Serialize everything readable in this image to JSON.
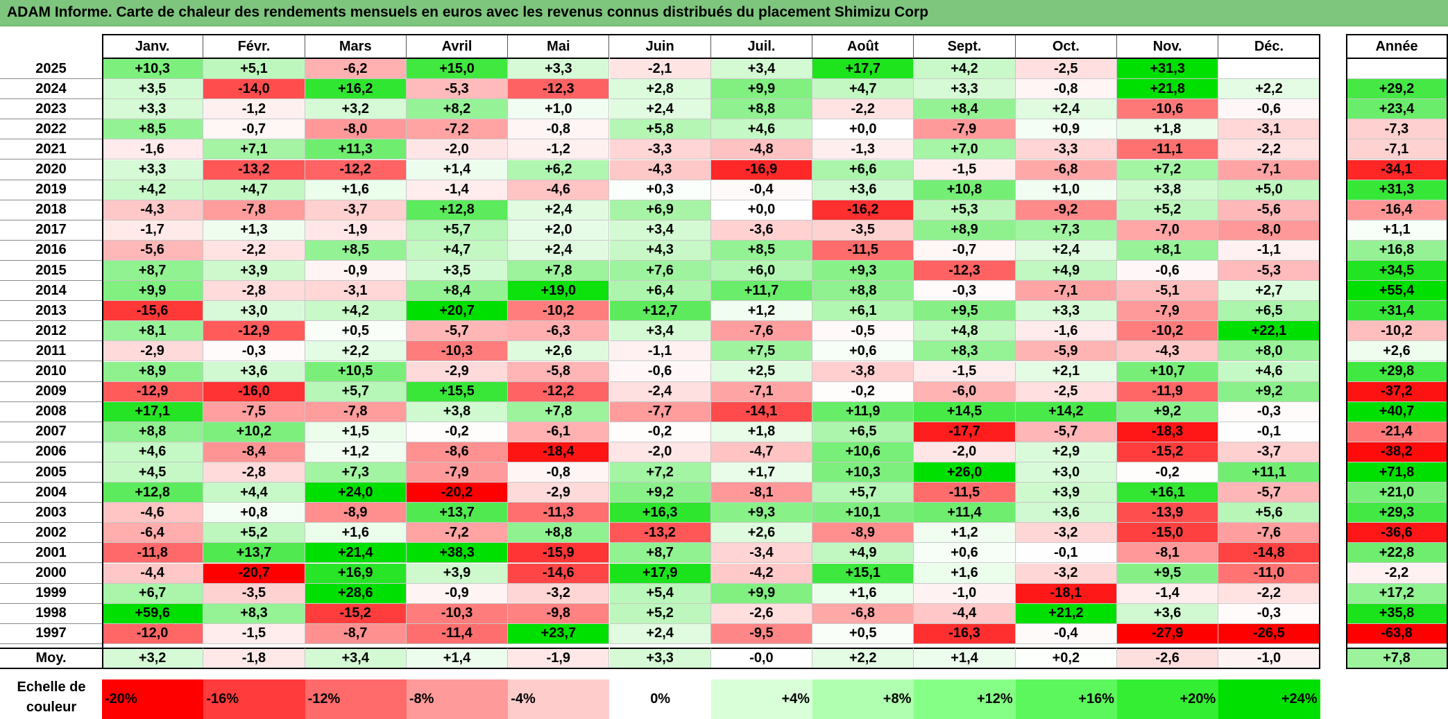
{
  "title": "ADAM Informe. Carte de chaleur des rendements mensuels en euros avec les revenus connus distribués du placement Shimizu Corp",
  "chart_data": {
    "type": "heatmap",
    "title": "ADAM Informe. Carte de chaleur des rendements mensuels en euros avec les revenus connus distribués du placement Shimizu Corp",
    "columns": [
      "Janv.",
      "Févr.",
      "Mars",
      "Avril",
      "Mai",
      "Juin",
      "Juil.",
      "Août",
      "Sept.",
      "Oct.",
      "Nov.",
      "Déc."
    ],
    "annual_header": "Année",
    "rows": [
      {
        "year": "2025",
        "values": [
          "+10,3",
          "+5,1",
          "-6,2",
          "+15,0",
          "+3,3",
          "-2,1",
          "+3,4",
          "+17,7",
          "+4,2",
          "-2,5",
          "+31,3",
          ""
        ],
        "annual": ""
      },
      {
        "year": "2024",
        "values": [
          "+3,5",
          "-14,0",
          "+16,2",
          "-5,3",
          "-12,3",
          "+2,8",
          "+9,9",
          "+4,7",
          "+3,3",
          "-0,8",
          "+21,8",
          "+2,2"
        ],
        "annual": "+29,2"
      },
      {
        "year": "2023",
        "values": [
          "+3,3",
          "-1,2",
          "+3,2",
          "+8,2",
          "+1,0",
          "+2,4",
          "+8,8",
          "-2,2",
          "+8,4",
          "+2,4",
          "-10,6",
          "-0,6"
        ],
        "annual": "+23,4"
      },
      {
        "year": "2022",
        "values": [
          "+8,5",
          "-0,7",
          "-8,0",
          "-7,2",
          "-0,8",
          "+5,8",
          "+4,6",
          "+0,0",
          "-7,9",
          "+0,9",
          "+1,8",
          "-3,1"
        ],
        "annual": "-7,3"
      },
      {
        "year": "2021",
        "values": [
          "-1,6",
          "+7,1",
          "+11,3",
          "-2,0",
          "-1,2",
          "-3,3",
          "-4,8",
          "-1,3",
          "+7,0",
          "-3,3",
          "-11,1",
          "-2,2"
        ],
        "annual": "-7,1"
      },
      {
        "year": "2020",
        "values": [
          "+3,3",
          "-13,2",
          "-12,2",
          "+1,4",
          "+6,2",
          "-4,3",
          "-16,9",
          "+6,6",
          "-1,5",
          "-6,8",
          "+7,2",
          "-7,1"
        ],
        "annual": "-34,1"
      },
      {
        "year": "2019",
        "values": [
          "+4,2",
          "+4,7",
          "+1,6",
          "-1,4",
          "-4,6",
          "+0,3",
          "-0,4",
          "+3,6",
          "+10,8",
          "+1,0",
          "+3,8",
          "+5,0"
        ],
        "annual": "+31,3"
      },
      {
        "year": "2018",
        "values": [
          "-4,3",
          "-7,8",
          "-3,7",
          "+12,8",
          "+2,4",
          "+6,9",
          "+0,0",
          "-16,2",
          "+5,3",
          "-9,2",
          "+5,2",
          "-5,6"
        ],
        "annual": "-16,4"
      },
      {
        "year": "2017",
        "values": [
          "-1,7",
          "+1,3",
          "-1,9",
          "+5,7",
          "+2,0",
          "+3,4",
          "-3,6",
          "-3,5",
          "+8,9",
          "+7,3",
          "-7,0",
          "-8,0"
        ],
        "annual": "+1,1"
      },
      {
        "year": "2016",
        "values": [
          "-5,6",
          "-2,2",
          "+8,5",
          "+4,7",
          "+2,4",
          "+4,3",
          "+8,5",
          "-11,5",
          "-0,7",
          "+2,4",
          "+8,1",
          "-1,1"
        ],
        "annual": "+16,8"
      },
      {
        "year": "2015",
        "values": [
          "+8,7",
          "+3,9",
          "-0,9",
          "+3,5",
          "+7,8",
          "+7,6",
          "+6,0",
          "+9,3",
          "-12,3",
          "+4,9",
          "-0,6",
          "-5,3"
        ],
        "annual": "+34,5"
      },
      {
        "year": "2014",
        "values": [
          "+9,9",
          "-2,8",
          "-3,1",
          "+8,4",
          "+19,0",
          "+6,4",
          "+11,7",
          "+8,8",
          "-0,3",
          "-7,1",
          "-5,1",
          "+2,7"
        ],
        "annual": "+55,4"
      },
      {
        "year": "2013",
        "values": [
          "-15,6",
          "+3,0",
          "+4,2",
          "+20,7",
          "-10,2",
          "+12,7",
          "+1,2",
          "+6,1",
          "+9,5",
          "+3,3",
          "-7,9",
          "+6,5"
        ],
        "annual": "+31,4"
      },
      {
        "year": "2012",
        "values": [
          "+8,1",
          "-12,9",
          "+0,5",
          "-5,7",
          "-6,3",
          "+3,4",
          "-7,6",
          "-0,5",
          "+4,8",
          "-1,6",
          "-10,2",
          "+22,1"
        ],
        "annual": "-10,2"
      },
      {
        "year": "2011",
        "values": [
          "-2,9",
          "-0,3",
          "+2,2",
          "-10,3",
          "+2,6",
          "-1,1",
          "+7,5",
          "+0,6",
          "+8,3",
          "-5,9",
          "-4,3",
          "+8,0"
        ],
        "annual": "+2,6"
      },
      {
        "year": "2010",
        "values": [
          "+8,9",
          "+3,6",
          "+10,5",
          "-2,9",
          "-5,8",
          "-0,6",
          "+2,5",
          "-3,8",
          "-1,5",
          "+2,1",
          "+10,7",
          "+4,6"
        ],
        "annual": "+29,8"
      },
      {
        "year": "2009",
        "values": [
          "-12,9",
          "-16,0",
          "+5,7",
          "+15,5",
          "-12,2",
          "-2,4",
          "-7,1",
          "-0,2",
          "-6,0",
          "-2,5",
          "-11,9",
          "+9,2"
        ],
        "annual": "-37,2"
      },
      {
        "year": "2008",
        "values": [
          "+17,1",
          "-7,5",
          "-7,8",
          "+3,8",
          "+7,8",
          "-7,7",
          "-14,1",
          "+11,9",
          "+14,5",
          "+14,2",
          "+9,2",
          "-0,3"
        ],
        "annual": "+40,7"
      },
      {
        "year": "2007",
        "values": [
          "+8,8",
          "+10,2",
          "+1,5",
          "-0,2",
          "-6,1",
          "-0,2",
          "+1,8",
          "+6,5",
          "-17,7",
          "-5,7",
          "-18,3",
          "-0,1"
        ],
        "annual": "-21,4"
      },
      {
        "year": "2006",
        "values": [
          "+4,6",
          "-8,4",
          "+1,2",
          "-8,6",
          "-18,4",
          "-2,0",
          "-4,7",
          "+10,6",
          "-2,0",
          "+2,9",
          "-15,2",
          "-3,7"
        ],
        "annual": "-38,2"
      },
      {
        "year": "2005",
        "values": [
          "+4,5",
          "-2,8",
          "+7,3",
          "-7,9",
          "-0,8",
          "+7,2",
          "+1,7",
          "+10,3",
          "+26,0",
          "+3,0",
          "-0,2",
          "+11,1"
        ],
        "annual": "+71,8"
      },
      {
        "year": "2004",
        "values": [
          "+12,8",
          "+4,4",
          "+24,0",
          "-20,2",
          "-2,9",
          "+9,2",
          "-8,1",
          "+5,7",
          "-11,5",
          "+3,9",
          "+16,1",
          "-5,7"
        ],
        "annual": "+21,0"
      },
      {
        "year": "2003",
        "values": [
          "-4,6",
          "+0,8",
          "-8,9",
          "+13,7",
          "-11,3",
          "+16,3",
          "+9,3",
          "+10,1",
          "+11,4",
          "+3,6",
          "-13,9",
          "+5,6"
        ],
        "annual": "+29,3"
      },
      {
        "year": "2002",
        "values": [
          "-6,4",
          "+5,2",
          "+1,6",
          "-7,2",
          "+8,8",
          "-13,2",
          "+2,6",
          "-8,9",
          "+1,2",
          "-3,2",
          "-15,0",
          "-7,6"
        ],
        "annual": "-36,6"
      },
      {
        "year": "2001",
        "values": [
          "-11,8",
          "+13,7",
          "+21,4",
          "+38,3",
          "-15,9",
          "+8,7",
          "-3,4",
          "+4,9",
          "+0,6",
          "-0,1",
          "-8,1",
          "-14,8"
        ],
        "annual": "+22,8"
      },
      {
        "year": "2000",
        "values": [
          "-4,4",
          "-20,7",
          "+16,9",
          "+3,9",
          "-14,6",
          "+17,9",
          "-4,2",
          "+15,1",
          "+1,6",
          "-3,2",
          "+9,5",
          "-11,0"
        ],
        "annual": "-2,2"
      },
      {
        "year": "1999",
        "values": [
          "+6,7",
          "-3,5",
          "+28,6",
          "-0,9",
          "-3,2",
          "+5,4",
          "+9,9",
          "+1,6",
          "-1,0",
          "-18,1",
          "-1,4",
          "-2,2"
        ],
        "annual": "+17,2"
      },
      {
        "year": "1998",
        "values": [
          "+59,6",
          "+8,3",
          "-15,2",
          "-10,3",
          "-9,8",
          "+5,2",
          "-2,6",
          "-6,8",
          "-4,4",
          "+21,2",
          "+3,6",
          "-0,3"
        ],
        "annual": "+35,8"
      },
      {
        "year": "1997",
        "values": [
          "-12,0",
          "-1,5",
          "-8,7",
          "-11,4",
          "+23,7",
          "+2,4",
          "-9,5",
          "+0,5",
          "-16,3",
          "-0,4",
          "-27,9",
          "-26,5"
        ],
        "annual": "-63,8"
      }
    ],
    "average": {
      "label": "Moy.",
      "values": [
        "+3,2",
        "-1,8",
        "+3,4",
        "+1,4",
        "-1,9",
        "+3,3",
        "-0,0",
        "+2,2",
        "+1,4",
        "+0,2",
        "-2,6",
        "-1,0"
      ],
      "annual": "+7,8"
    },
    "scale": {
      "label": "Echelle de couleur",
      "entries": [
        {
          "label": "-20%",
          "color": "#ff0000"
        },
        {
          "label": "-16%",
          "color": "#ff3b3b"
        },
        {
          "label": "-12%",
          "color": "#ff6b6b"
        },
        {
          "label": "-8%",
          "color": "#ff9a9a"
        },
        {
          "label": "-4%",
          "color": "#ffcccc"
        },
        {
          "label": "0%",
          "color": "#ffffff"
        },
        {
          "label": "+4%",
          "color": "#d9ffd9"
        },
        {
          "label": "+8%",
          "color": "#b0ffb0"
        },
        {
          "label": "+12%",
          "color": "#86ff86"
        },
        {
          "label": "+16%",
          "color": "#5cf75c"
        },
        {
          "label": "+20%",
          "color": "#33ee33"
        },
        {
          "label": "+24%",
          "color": "#00e000"
        }
      ]
    }
  }
}
